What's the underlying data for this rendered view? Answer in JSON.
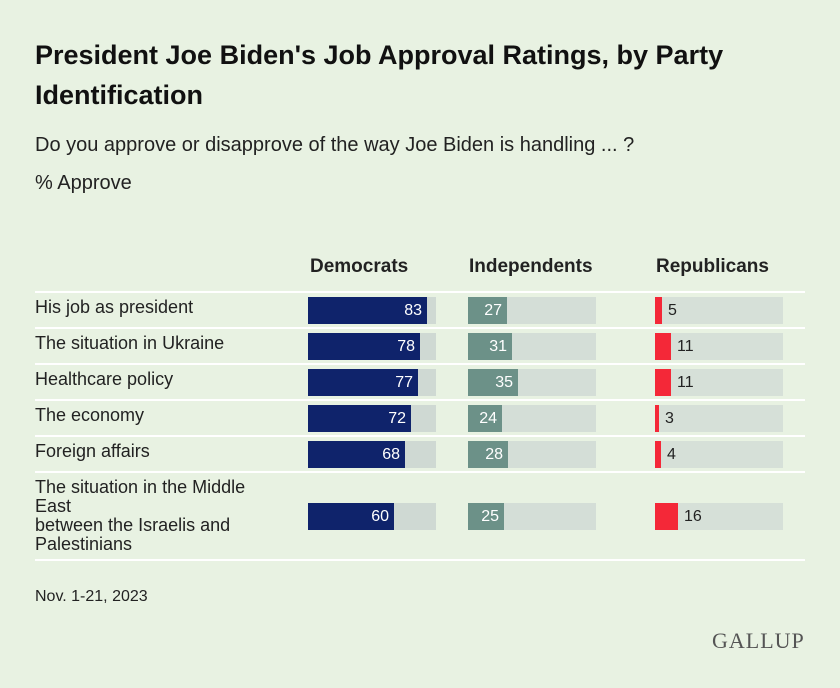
{
  "chart_data": {
    "type": "bar",
    "title": "President Joe Biden's Job Approval Ratings, by Party Identification",
    "subtitle": "Do you approve or disapprove of the way Joe Biden is handling ... ?",
    "unit_label": "% Approve",
    "categories": [
      "His job as president",
      "The situation in Ukraine",
      "Healthcare policy",
      "The economy",
      "Foreign affairs",
      "The situation in the Middle East\nbetween the Israelis and Palestinians"
    ],
    "series": [
      {
        "name": "Democrats",
        "values": [
          83,
          78,
          77,
          72,
          68,
          60
        ],
        "color": "#0f236b"
      },
      {
        "name": "Independents",
        "values": [
          27,
          31,
          35,
          24,
          28,
          25
        ],
        "color": "#6c9188"
      },
      {
        "name": "Republicans",
        "values": [
          5,
          11,
          11,
          3,
          4,
          16
        ],
        "color": "#f42838"
      }
    ],
    "ylim": [
      0,
      100
    ],
    "footnote": "Nov. 1-21, 2023",
    "source": "GALLUP"
  }
}
